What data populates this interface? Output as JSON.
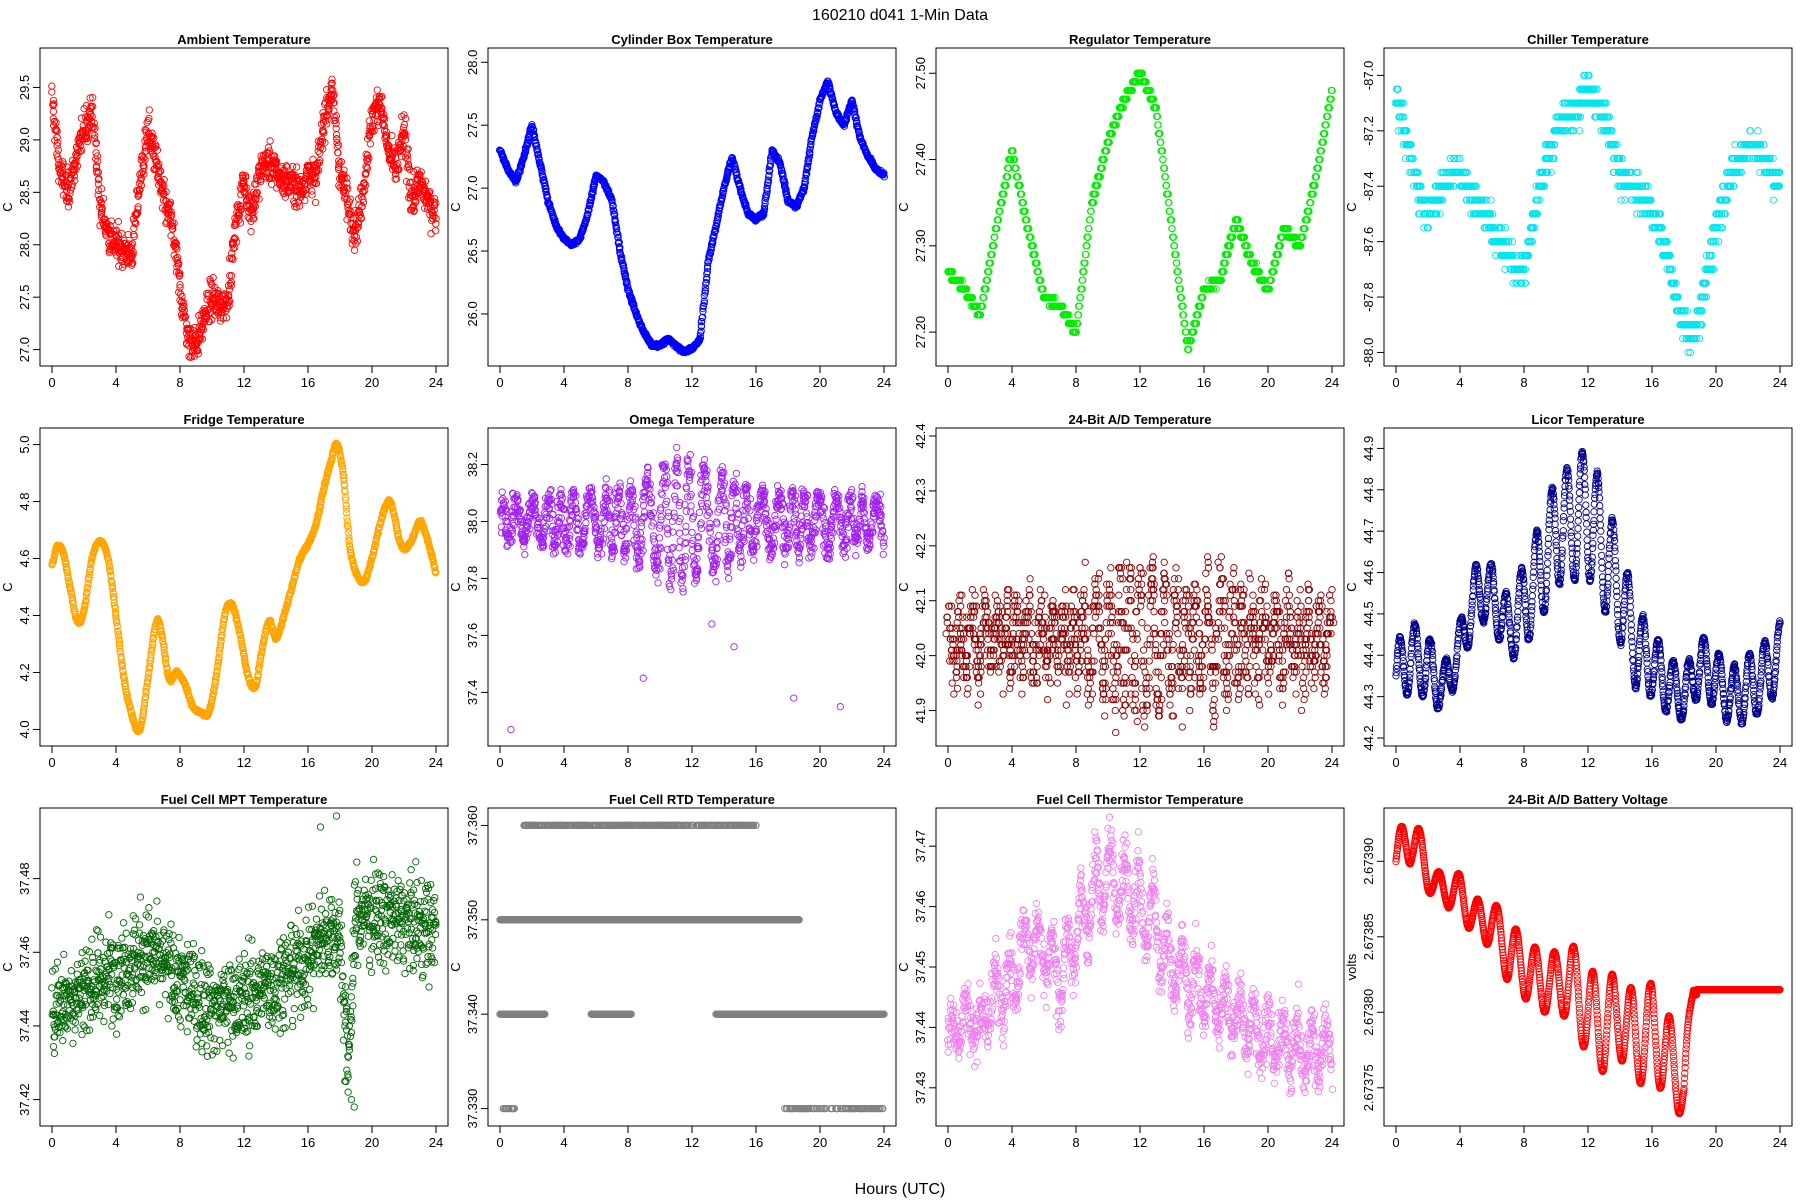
{
  "figure": {
    "title": "160210    d041    1-Min Data",
    "xlabel": "Hours (UTC)"
  },
  "chart_data": [
    {
      "type": "scatter",
      "title": "Ambient Temperature",
      "ylabel": "C",
      "color": "#ff0000",
      "xlim": [
        0,
        24
      ],
      "xticks": [
        "0",
        "4",
        "8",
        "12",
        "16",
        "20",
        "24"
      ],
      "ylim": [
        26.92,
        29.8
      ],
      "yticks": [
        "27.0",
        "27.5",
        "28.0",
        "28.5",
        "29.0",
        "29.5"
      ],
      "x": [
        0,
        0.5,
        1,
        1.5,
        2,
        2.5,
        3,
        3.5,
        4,
        4.5,
        5,
        5.5,
        6,
        6.5,
        7,
        7.5,
        8,
        8.5,
        9,
        9.5,
        10,
        10.5,
        11,
        11.5,
        12,
        12.5,
        13,
        13.5,
        14,
        14.5,
        15,
        15.5,
        16,
        16.5,
        17,
        17.5,
        18,
        18.5,
        19,
        19.5,
        20,
        20.5,
        21,
        21.5,
        22,
        22.5,
        23,
        23.5,
        24
      ],
      "y": [
        29.4,
        28.7,
        28.5,
        28.8,
        29.1,
        29.3,
        28.4,
        28.1,
        28.0,
        27.95,
        27.9,
        28.6,
        29.1,
        28.8,
        28.4,
        28.2,
        27.6,
        27.1,
        27.05,
        27.3,
        27.5,
        27.4,
        27.5,
        28.2,
        28.6,
        28.3,
        28.7,
        28.8,
        28.7,
        28.6,
        28.6,
        28.5,
        28.7,
        28.6,
        29.2,
        29.5,
        28.7,
        28.4,
        28.1,
        28.6,
        29.2,
        29.4,
        28.9,
        28.7,
        29.1,
        28.4,
        28.6,
        28.4,
        28.3
      ],
      "noise": 0.12,
      "jitter": 0.1,
      "interp": "linear"
    },
    {
      "type": "scatter",
      "title": "Cylinder Box Temperature",
      "ylabel": "C",
      "color": "#0000ff",
      "xlim": [
        0,
        24
      ],
      "xticks": [
        "0",
        "4",
        "8",
        "12",
        "16",
        "20",
        "24"
      ],
      "ylim": [
        25.65,
        28.05
      ],
      "yticks": [
        "26.0",
        "26.5",
        "27.0",
        "27.5",
        "28.0"
      ],
      "x": [
        0,
        0.5,
        1,
        1.5,
        2,
        2.5,
        3,
        3.5,
        4,
        4.5,
        5,
        5.5,
        6,
        6.5,
        7,
        7.5,
        8,
        8.5,
        9,
        9.5,
        10,
        10.5,
        11,
        11.5,
        12,
        12.5,
        13,
        13.5,
        14,
        14.5,
        15,
        15.5,
        16,
        16.5,
        17,
        17.5,
        18,
        18.5,
        19,
        19.5,
        20,
        20.5,
        21,
        21.5,
        22,
        22.5,
        23,
        23.5,
        24
      ],
      "y": [
        27.3,
        27.15,
        27.05,
        27.25,
        27.5,
        27.2,
        26.9,
        26.7,
        26.6,
        26.55,
        26.6,
        26.8,
        27.1,
        27.05,
        26.9,
        26.5,
        26.2,
        26.0,
        25.85,
        25.75,
        25.75,
        25.8,
        25.75,
        25.7,
        25.72,
        25.8,
        26.4,
        26.7,
        27.0,
        27.25,
        27.0,
        26.8,
        26.75,
        26.8,
        27.3,
        27.2,
        26.9,
        26.85,
        27.0,
        27.4,
        27.7,
        27.85,
        27.6,
        27.5,
        27.7,
        27.4,
        27.25,
        27.15,
        27.1
      ],
      "noise": 0.01,
      "jitter": 0.05,
      "interp": "linear"
    },
    {
      "type": "scatter",
      "title": "Regulator Temperature",
      "ylabel": "C",
      "color": "#00ee00",
      "xlim": [
        0,
        24
      ],
      "xticks": [
        "0",
        "4",
        "8",
        "12",
        "16",
        "20",
        "24"
      ],
      "ylim": [
        27.17,
        27.52
      ],
      "yticks": [
        "27.20",
        "27.30",
        "27.40",
        "27.50"
      ],
      "x": [
        0,
        1,
        2,
        3,
        4,
        5,
        6,
        7,
        8,
        9,
        10,
        11,
        12,
        13,
        14,
        15,
        16,
        17,
        18,
        19,
        20,
        21,
        22,
        23,
        24
      ],
      "y": [
        27.27,
        27.25,
        27.22,
        27.32,
        27.41,
        27.32,
        27.24,
        27.23,
        27.2,
        27.35,
        27.42,
        27.47,
        27.5,
        27.46,
        27.32,
        27.18,
        27.25,
        27.26,
        27.33,
        27.28,
        27.25,
        27.32,
        27.3,
        27.38,
        27.48
      ],
      "noise": 0.002,
      "jitter": 0.03,
      "interp": "linear",
      "quant": 0.01
    },
    {
      "type": "scatter",
      "title": "Chiller Temperature",
      "ylabel": "C",
      "color": "#00e5ee",
      "xlim": [
        0,
        24
      ],
      "xticks": [
        "0",
        "4",
        "8",
        "12",
        "16",
        "20",
        "24"
      ],
      "ylim": [
        -88.02,
        -86.93
      ],
      "yticks": [
        "-88.0",
        "-87.8",
        "-87.6",
        "-87.4",
        "-87.2",
        "-87.0"
      ],
      "x": [
        0,
        0.5,
        1,
        1.5,
        2,
        2.5,
        3,
        3.5,
        4,
        4.5,
        5,
        5.5,
        6,
        6.5,
        7,
        7.5,
        8,
        8.5,
        9,
        9.5,
        10,
        10.5,
        11,
        11.5,
        12,
        12.5,
        13,
        13.5,
        14,
        14.5,
        15,
        15.5,
        16,
        16.5,
        17,
        17.5,
        18,
        18.5,
        19,
        19.5,
        20,
        20.5,
        21,
        21.5,
        22,
        22.5,
        23,
        23.5,
        24
      ],
      "y": [
        -87.05,
        -87.2,
        -87.3,
        -87.45,
        -87.5,
        -87.45,
        -87.4,
        -87.35,
        -87.35,
        -87.4,
        -87.45,
        -87.5,
        -87.55,
        -87.6,
        -87.65,
        -87.7,
        -87.7,
        -87.55,
        -87.4,
        -87.3,
        -87.2,
        -87.15,
        -87.15,
        -87.1,
        -87.05,
        -87.1,
        -87.15,
        -87.25,
        -87.35,
        -87.4,
        -87.4,
        -87.45,
        -87.5,
        -87.55,
        -87.65,
        -87.8,
        -87.9,
        -87.95,
        -87.85,
        -87.7,
        -87.55,
        -87.45,
        -87.35,
        -87.3,
        -87.25,
        -87.25,
        -87.3,
        -87.35,
        -87.4
      ],
      "noise": 0.04,
      "jitter": 0.2,
      "interp": "linear",
      "quant": 0.05
    },
    {
      "type": "scatter",
      "title": "Fridge Temperature",
      "ylabel": "C",
      "color": "#ffa500",
      "xlim": [
        0,
        24
      ],
      "xticks": [
        "0",
        "4",
        "8",
        "12",
        "16",
        "20",
        "24"
      ],
      "ylim": [
        3.97,
        5.03
      ],
      "yticks": [
        "4.0",
        "4.2",
        "4.4",
        "4.6",
        "4.8",
        "5.0"
      ],
      "x": [
        0,
        0.3,
        0.7,
        1.2,
        1.6,
        2.0,
        2.5,
        3.0,
        3.5,
        4.0,
        4.5,
        5.0,
        5.5,
        6.0,
        6.5,
        6.8,
        7.3,
        7.8,
        8.3,
        8.8,
        9.3,
        9.8,
        10.3,
        10.8,
        11.2,
        11.7,
        12.2,
        12.7,
        13.2,
        13.6,
        14.0,
        14.5,
        15.0,
        15.5,
        16.0,
        16.5,
        17.0,
        17.5,
        17.8,
        18.2,
        18.6,
        19.0,
        19.5,
        20.0,
        20.5,
        21.0,
        21.3,
        21.8,
        22.2,
        22.6,
        23.0,
        23.4,
        23.8,
        24.0
      ],
      "y": [
        4.58,
        4.64,
        4.62,
        4.48,
        4.38,
        4.42,
        4.6,
        4.66,
        4.6,
        4.4,
        4.18,
        4.05,
        4.0,
        4.18,
        4.37,
        4.35,
        4.18,
        4.2,
        4.16,
        4.08,
        4.06,
        4.06,
        4.2,
        4.4,
        4.44,
        4.35,
        4.2,
        4.15,
        4.3,
        4.38,
        4.32,
        4.4,
        4.5,
        4.6,
        4.65,
        4.72,
        4.85,
        4.95,
        5.0,
        4.9,
        4.65,
        4.55,
        4.52,
        4.6,
        4.72,
        4.8,
        4.77,
        4.65,
        4.64,
        4.68,
        4.73,
        4.68,
        4.6,
        4.55
      ],
      "noise": 0.004,
      "jitter": 0.03,
      "interp": "cubic"
    },
    {
      "type": "scatter",
      "title": "Omega Temperature",
      "ylabel": "C",
      "color": "#a020f0",
      "xlim": [
        0,
        24
      ],
      "xticks": [
        "0",
        "4",
        "8",
        "12",
        "16",
        "20",
        "24"
      ],
      "ylim": [
        37.24,
        38.3
      ],
      "yticks": [
        "37.4",
        "37.6",
        "37.8",
        "38.0",
        "38.2"
      ],
      "base": 38.0,
      "amp": [
        0.07,
        0.07,
        0.08,
        0.08,
        0.09,
        0.1,
        0.1,
        0.1,
        0.12,
        0.14,
        0.18,
        0.22,
        0.2,
        0.18,
        0.16,
        0.12,
        0.1,
        0.1,
        0.1,
        0.1,
        0.1,
        0.09,
        0.08,
        0.08,
        0.08
      ],
      "period": 0.9,
      "noise": 0.03,
      "jitter": 0.2,
      "interp": "osc",
      "outliers": [
        [
          0.6,
          37.27
        ],
        [
          9.0,
          37.45
        ],
        [
          13.2,
          37.64
        ],
        [
          14.7,
          37.56
        ],
        [
          18.3,
          37.38
        ],
        [
          21.2,
          37.35
        ]
      ]
    },
    {
      "type": "scatter",
      "title": "24-Bit A/D Temperature",
      "ylabel": "C",
      "color": "#8b0000",
      "xlim": [
        0,
        24
      ],
      "xticks": [
        "0",
        "4",
        "8",
        "12",
        "16",
        "20",
        "24"
      ],
      "ylim": [
        41.85,
        42.4
      ],
      "yticks": [
        "41.9",
        "42.0",
        "42.1",
        "42.2",
        "42.3",
        "42.4"
      ],
      "base": 42.03,
      "amp": [
        0.05,
        0.05,
        0.05,
        0.05,
        0.05,
        0.05,
        0.05,
        0.05,
        0.06,
        0.08,
        0.1,
        0.12,
        0.13,
        0.12,
        0.1,
        0.09,
        0.1,
        0.12,
        0.08,
        0.06,
        0.06,
        0.06,
        0.06,
        0.06,
        0.06
      ],
      "period": 0.7,
      "noise": 0.04,
      "jitter": 0.25,
      "interp": "osc",
      "quant": 0.01
    },
    {
      "type": "scatter",
      "title": "Licor Temperature",
      "ylabel": "C",
      "color": "#00008b",
      "xlim": [
        0,
        24
      ],
      "xticks": [
        "0",
        "4",
        "8",
        "12",
        "16",
        "20",
        "24"
      ],
      "ylim": [
        44.2,
        44.93
      ],
      "yticks": [
        "44.2",
        "44.3",
        "44.4",
        "44.5",
        "44.6",
        "44.7",
        "44.8",
        "44.9"
      ],
      "x": [
        0,
        1,
        2,
        3,
        4,
        5,
        6,
        7,
        8,
        9,
        10,
        11,
        12,
        13,
        14,
        15,
        16,
        17,
        18,
        19,
        20,
        21,
        22,
        23,
        24
      ],
      "y": [
        44.35,
        44.4,
        44.37,
        44.32,
        44.42,
        44.55,
        44.55,
        44.46,
        44.52,
        44.6,
        44.7,
        44.72,
        44.75,
        44.65,
        44.55,
        44.42,
        44.38,
        44.33,
        44.3,
        44.38,
        44.34,
        44.3,
        44.32,
        44.35,
        44.4
      ],
      "amp": [
        0.08,
        0.08,
        0.08,
        0.06,
        0.06,
        0.07,
        0.07,
        0.08,
        0.1,
        0.12,
        0.13,
        0.14,
        0.16,
        0.14,
        0.12,
        0.1,
        0.08,
        0.07,
        0.06,
        0.07,
        0.07,
        0.07,
        0.08,
        0.08,
        0.08
      ],
      "period": 0.95,
      "noise": 0.004,
      "jitter": 0.02,
      "interp": "oscline"
    },
    {
      "type": "scatter",
      "title": "Fuel Cell MPT Temperature",
      "ylabel": "C",
      "color": "#006400",
      "xlim": [
        0,
        24
      ],
      "xticks": [
        "0",
        "4",
        "8",
        "12",
        "16",
        "20",
        "24"
      ],
      "ylim": [
        37.415,
        37.497
      ],
      "yticks": [
        "37.42",
        "37.44",
        "37.46",
        "37.48"
      ],
      "x": [
        0,
        2,
        4,
        6,
        8,
        10,
        12,
        14,
        16,
        17,
        18,
        18.5,
        19,
        20,
        22,
        24
      ],
      "y": [
        37.445,
        37.45,
        37.455,
        37.46,
        37.452,
        37.445,
        37.447,
        37.452,
        37.458,
        37.465,
        37.465,
        37.43,
        37.47,
        37.47,
        37.468,
        37.466
      ],
      "noise": 0.009,
      "jitter": 0.05,
      "interp": "linear",
      "outliers": [
        [
          18.3,
          37.425
        ],
        [
          18.5,
          37.422
        ],
        [
          18.7,
          37.42
        ],
        [
          18.9,
          37.418
        ],
        [
          18.4,
          37.428
        ],
        [
          16.8,
          37.494
        ],
        [
          17.8,
          37.497
        ]
      ]
    },
    {
      "type": "scatter",
      "title": "Fuel Cell RTD Temperature",
      "ylabel": "C",
      "color": "#808080",
      "xlim": [
        0,
        24
      ],
      "xticks": [
        "0",
        "4",
        "8",
        "12",
        "16",
        "20",
        "24"
      ],
      "ylim": [
        37.329,
        37.361
      ],
      "yticks": [
        "37.330",
        "37.340",
        "37.350",
        "37.360"
      ],
      "interp": "bands",
      "bands": [
        {
          "y": 37.35,
          "segments": [
            [
              0,
              18.7
            ]
          ]
        },
        {
          "y": 37.34,
          "segments": [
            [
              0,
              2.8
            ],
            [
              5.7,
              8.2
            ],
            [
              13.5,
              24
            ]
          ]
        },
        {
          "y": 37.36,
          "segments": [
            [
              1.5,
              16
            ]
          ]
        },
        {
          "y": 37.33,
          "segments": [
            [
              0.2,
              0.9
            ],
            [
              17.8,
              24
            ]
          ]
        }
      ]
    },
    {
      "type": "scatter",
      "title": "Fuel Cell Thermistor Temperature",
      "ylabel": "C",
      "color": "#ee82ee",
      "xlim": [
        0,
        24
      ],
      "xticks": [
        "0",
        "4",
        "8",
        "12",
        "16",
        "20",
        "24"
      ],
      "ylim": [
        37.425,
        37.475
      ],
      "yticks": [
        "37.43",
        "37.44",
        "37.45",
        "37.46",
        "37.47"
      ],
      "x": [
        0,
        1,
        2,
        3,
        4,
        5,
        6,
        7,
        8,
        9,
        10,
        11,
        12,
        13,
        14,
        15,
        16,
        17,
        18,
        19,
        20,
        21,
        22,
        23,
        24
      ],
      "y": [
        37.438,
        37.442,
        37.44,
        37.446,
        37.448,
        37.455,
        37.452,
        37.448,
        37.455,
        37.462,
        37.465,
        37.463,
        37.46,
        37.457,
        37.45,
        37.448,
        37.446,
        37.444,
        37.442,
        37.44,
        37.438,
        37.437,
        37.436,
        37.436,
        37.437
      ],
      "amp": [
        0.003,
        0.003,
        0.003,
        0.004,
        0.004,
        0.004,
        0.004,
        0.005,
        0.005,
        0.006,
        0.006,
        0.006,
        0.006,
        0.006,
        0.005,
        0.005,
        0.005,
        0.004,
        0.004,
        0.004,
        0.004,
        0.004,
        0.004,
        0.004,
        0.004
      ],
      "period": 0.9,
      "noise": 0.003,
      "jitter": 0.1,
      "interp": "oscline"
    },
    {
      "type": "scatter",
      "title": "24-Bit A/D Battery Voltage",
      "ylabel": "volts",
      "color": "#ff0000",
      "xlim": [
        0,
        24
      ],
      "xticks": [
        "0",
        "4",
        "8",
        "12",
        "16",
        "20",
        "24"
      ],
      "ylim": [
        2.67373,
        2.67393
      ],
      "yticks": [
        "2.67375",
        "2.67380",
        "2.67385",
        "2.67390"
      ],
      "x": [
        0,
        1,
        2,
        3,
        4,
        5,
        6,
        7,
        8,
        9,
        10,
        11,
        12,
        13,
        14,
        15,
        16,
        17,
        18,
        18.6,
        19,
        24
      ],
      "y": [
        2.6739,
        2.67392,
        2.67389,
        2.67388,
        2.67388,
        2.67386,
        2.67386,
        2.67384,
        2.67383,
        2.67382,
        2.67382,
        2.67382,
        2.6738,
        2.67379,
        2.6738,
        2.67378,
        2.67379,
        2.67377,
        2.67375,
        2.673815,
        2.673815,
        2.673815
      ],
      "amp": [
        1.5e-05,
        2e-05,
        1e-05,
        1e-05,
        1.2e-05,
        1.5e-05,
        1.5e-05,
        2e-05,
        2e-05,
        2e-05,
        2e-05,
        2.5e-05,
        3e-05,
        3e-05,
        3e-05,
        3e-05,
        3e-05,
        3e-05,
        2e-05,
        0,
        0,
        0
      ],
      "period": 1.2,
      "noise": 2e-07,
      "jitter": 0.01,
      "interp": "battery"
    }
  ]
}
